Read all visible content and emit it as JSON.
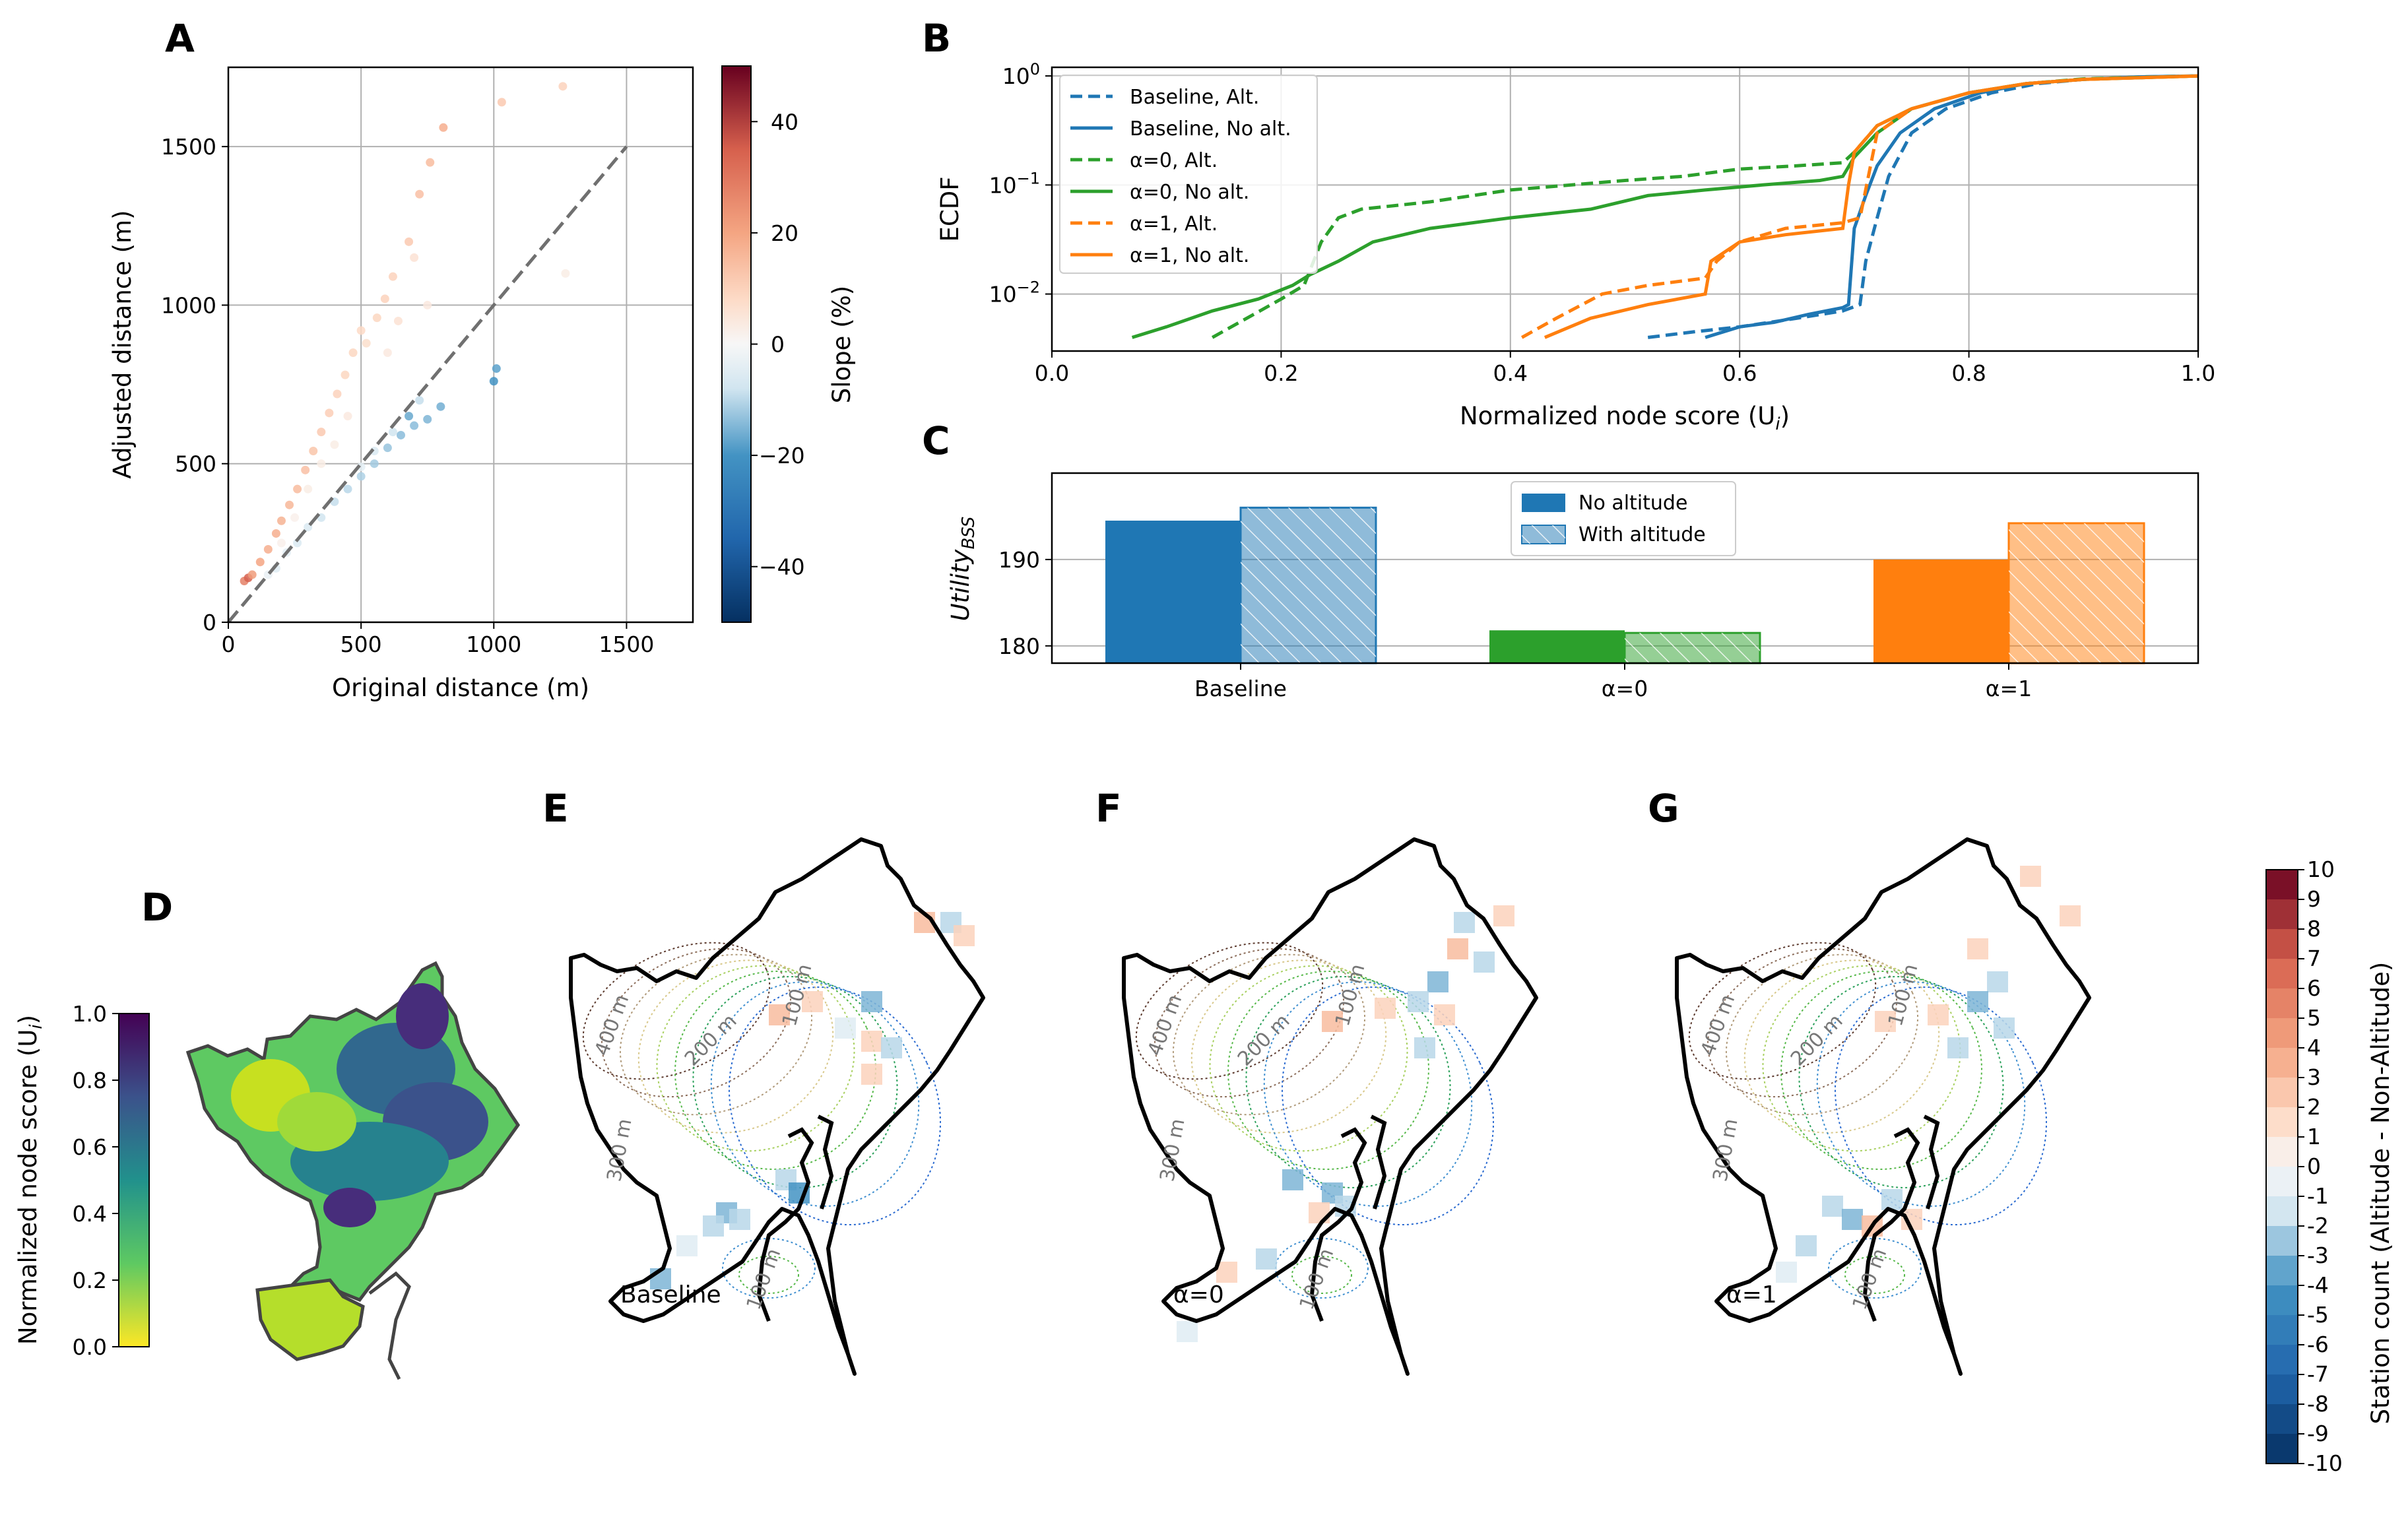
{
  "panels": {
    "A": "A",
    "B": "B",
    "C": "C",
    "D": "D",
    "E": "E",
    "F": "F",
    "G": "G"
  },
  "chart_data": [
    {
      "panel": "A",
      "type": "scatter",
      "xlabel": "Original distance (m)",
      "ylabel": "Adjusted distance (m)",
      "xlim": [
        0,
        1750
      ],
      "ylim": [
        0,
        1750
      ],
      "xticks": [
        0,
        500,
        1000,
        1500
      ],
      "yticks": [
        0,
        500,
        1000,
        1500
      ],
      "grid": true,
      "reference_line": {
        "x": [
          0,
          1500
        ],
        "y": [
          0,
          1500
        ],
        "style": "dashed",
        "color": "#707070"
      },
      "colorbar": {
        "label": "Slope (%)",
        "range": [
          -50,
          50
        ],
        "ticks": [
          40,
          20,
          0,
          -20,
          -40
        ],
        "colormap": "RdBu_r"
      },
      "points": [
        [
          60,
          130,
          28
        ],
        [
          75,
          140,
          35
        ],
        [
          90,
          150,
          22
        ],
        [
          120,
          190,
          20
        ],
        [
          150,
          230,
          18
        ],
        [
          180,
          280,
          18
        ],
        [
          200,
          320,
          17
        ],
        [
          230,
          370,
          16
        ],
        [
          260,
          420,
          15
        ],
        [
          290,
          480,
          14
        ],
        [
          320,
          540,
          13
        ],
        [
          350,
          600,
          12
        ],
        [
          380,
          660,
          11
        ],
        [
          410,
          720,
          10
        ],
        [
          440,
          780,
          9
        ],
        [
          470,
          850,
          9
        ],
        [
          500,
          920,
          8
        ],
        [
          520,
          880,
          7
        ],
        [
          560,
          960,
          9
        ],
        [
          590,
          1020,
          10
        ],
        [
          620,
          1090,
          10
        ],
        [
          680,
          1200,
          12
        ],
        [
          720,
          1350,
          14
        ],
        [
          760,
          1450,
          15
        ],
        [
          810,
          1560,
          18
        ],
        [
          1030,
          1640,
          12
        ],
        [
          1260,
          1690,
          10
        ],
        [
          1270,
          1100,
          3
        ],
        [
          700,
          1150,
          6
        ],
        [
          750,
          1000,
          4
        ],
        [
          640,
          950,
          6
        ],
        [
          600,
          850,
          4
        ],
        [
          450,
          650,
          4
        ],
        [
          400,
          560,
          3
        ],
        [
          350,
          500,
          3
        ],
        [
          300,
          420,
          3
        ],
        [
          250,
          330,
          2
        ],
        [
          200,
          250,
          2
        ],
        [
          150,
          150,
          -3
        ],
        [
          180,
          170,
          -5
        ],
        [
          220,
          220,
          -4
        ],
        [
          260,
          250,
          -6
        ],
        [
          300,
          300,
          -6
        ],
        [
          350,
          330,
          -8
        ],
        [
          400,
          380,
          -9
        ],
        [
          450,
          420,
          -10
        ],
        [
          500,
          460,
          -11
        ],
        [
          550,
          500,
          -12
        ],
        [
          600,
          550,
          -13
        ],
        [
          650,
          590,
          -14
        ],
        [
          700,
          620,
          -14
        ],
        [
          750,
          640,
          -15
        ],
        [
          800,
          680,
          -16
        ],
        [
          680,
          650,
          -17
        ],
        [
          1000,
          760,
          -20
        ],
        [
          1010,
          800,
          -18
        ],
        [
          550,
          540,
          -6
        ],
        [
          620,
          600,
          -8
        ],
        [
          720,
          700,
          -9
        ],
        [
          500,
          490,
          -4
        ]
      ]
    },
    {
      "panel": "B",
      "type": "line",
      "xlabel": "Normalized node score (U",
      "xlabel_sub": "i",
      "xlabel_close": ")",
      "ylabel": "ECDF",
      "xlim": [
        0,
        1.0
      ],
      "yscale": "log",
      "ylim": [
        0.003,
        1.2
      ],
      "xticks": [
        "0.0",
        "0.2",
        "0.4",
        "0.6",
        "0.8",
        "1.0"
      ],
      "yticks": [
        {
          "v": 1,
          "base": "10",
          "exp": "0"
        },
        {
          "v": 0.1,
          "base": "10",
          "exp": "−1"
        },
        {
          "v": 0.01,
          "base": "10",
          "exp": "−2"
        }
      ],
      "grid": true,
      "legend_position": "upper-left",
      "series": [
        {
          "name": "Baseline, Alt.",
          "color": "#1f77b4",
          "dash": true,
          "x": [
            0.52,
            0.56,
            0.6,
            0.65,
            0.69,
            0.705,
            0.71,
            0.72,
            0.73,
            0.75,
            0.78,
            0.82,
            0.86,
            0.9,
            0.95,
            1.0
          ],
          "y": [
            0.004,
            0.0045,
            0.005,
            0.006,
            0.007,
            0.008,
            0.02,
            0.05,
            0.12,
            0.3,
            0.5,
            0.7,
            0.85,
            0.93,
            0.98,
            1.0
          ]
        },
        {
          "name": "Baseline, No alt.",
          "color": "#1f77b4",
          "dash": false,
          "x": [
            0.57,
            0.6,
            0.63,
            0.66,
            0.69,
            0.695,
            0.7,
            0.71,
            0.72,
            0.74,
            0.77,
            0.81,
            0.85,
            0.9,
            0.95,
            1.0
          ],
          "y": [
            0.004,
            0.005,
            0.0055,
            0.0065,
            0.0075,
            0.008,
            0.04,
            0.08,
            0.15,
            0.3,
            0.5,
            0.7,
            0.85,
            0.93,
            0.98,
            1.0
          ]
        },
        {
          "name": "α=0, Alt.",
          "color": "#2ca02c",
          "dash": true,
          "x": [
            0.14,
            0.17,
            0.2,
            0.22,
            0.235,
            0.25,
            0.27,
            0.33,
            0.4,
            0.5,
            0.55,
            0.6,
            0.65,
            0.69,
            0.7,
            0.72,
            0.75,
            0.8,
            0.85,
            0.9,
            1.0
          ],
          "y": [
            0.004,
            0.006,
            0.009,
            0.012,
            0.03,
            0.05,
            0.06,
            0.07,
            0.09,
            0.11,
            0.12,
            0.14,
            0.15,
            0.16,
            0.2,
            0.35,
            0.5,
            0.7,
            0.85,
            0.94,
            1.0
          ]
        },
        {
          "name": "α=0, No alt.",
          "color": "#2ca02c",
          "dash": false,
          "x": [
            0.07,
            0.1,
            0.14,
            0.18,
            0.21,
            0.225,
            0.25,
            0.28,
            0.33,
            0.4,
            0.47,
            0.52,
            0.57,
            0.62,
            0.67,
            0.69,
            0.7,
            0.72,
            0.75,
            0.8,
            0.85,
            0.9,
            1.0
          ],
          "y": [
            0.004,
            0.005,
            0.007,
            0.009,
            0.012,
            0.015,
            0.02,
            0.03,
            0.04,
            0.05,
            0.06,
            0.08,
            0.09,
            0.1,
            0.11,
            0.12,
            0.18,
            0.3,
            0.5,
            0.7,
            0.85,
            0.93,
            1.0
          ]
        },
        {
          "name": "α=1, Alt.",
          "color": "#ff7f0e",
          "dash": true,
          "x": [
            0.41,
            0.44,
            0.48,
            0.52,
            0.57,
            0.58,
            0.6,
            0.64,
            0.69,
            0.705,
            0.72,
            0.75,
            0.8,
            0.85,
            0.9,
            1.0
          ],
          "y": [
            0.004,
            0.006,
            0.01,
            0.012,
            0.014,
            0.02,
            0.03,
            0.04,
            0.045,
            0.05,
            0.3,
            0.5,
            0.7,
            0.85,
            0.93,
            1.0
          ]
        },
        {
          "name": "α=1, No alt.",
          "color": "#ff7f0e",
          "dash": false,
          "x": [
            0.43,
            0.47,
            0.52,
            0.57,
            0.575,
            0.6,
            0.64,
            0.69,
            0.695,
            0.7,
            0.72,
            0.75,
            0.8,
            0.85,
            0.9,
            1.0
          ],
          "y": [
            0.004,
            0.006,
            0.008,
            0.01,
            0.02,
            0.03,
            0.035,
            0.04,
            0.1,
            0.2,
            0.35,
            0.5,
            0.7,
            0.85,
            0.93,
            1.0
          ]
        }
      ]
    },
    {
      "panel": "C",
      "type": "bar",
      "ylabel": "Utility",
      "ylabel_sub": "BSS",
      "categories": [
        "Baseline",
        "α=0",
        "α=1"
      ],
      "ylim": [
        178,
        200
      ],
      "yticks": [
        180,
        190
      ],
      "grid": true,
      "legend_position": "upper-center",
      "series": [
        {
          "name": "No altitude",
          "values": [
            194.5,
            181.8,
            190.0
          ],
          "hatched": false
        },
        {
          "name": "With altitude",
          "values": [
            196.0,
            181.5,
            194.2
          ],
          "hatched": true
        }
      ],
      "colors": [
        "#1f77b4",
        "#2ca02c",
        "#ff7f0e"
      ]
    },
    {
      "panel": "D",
      "type": "heatmap",
      "colorbar": {
        "label": "Normalized node score (U",
        "label_sub": "i",
        "label_close": ")",
        "range": [
          0.0,
          1.0
        ],
        "ticks": [
          "1.0",
          "0.8",
          "0.6",
          "0.4",
          "0.2",
          "0.0"
        ],
        "colormap": "viridis_r"
      }
    },
    {
      "panel": "E-G",
      "type": "heatmap",
      "maps": [
        {
          "panel": "E",
          "label": "Baseline"
        },
        {
          "panel": "F",
          "label": "α=0"
        },
        {
          "panel": "G",
          "label": "α=1"
        }
      ],
      "contour_labels": [
        "400 m",
        "300 m",
        "200 m",
        "100 m",
        "100 m"
      ],
      "colorbar": {
        "label": "Station count (Altitude - Non-Altitude)",
        "range": [
          -10,
          10
        ],
        "ticks": [
          "10",
          "9",
          "8",
          "7",
          "6",
          "5",
          "4",
          "3",
          "2",
          "1",
          "0",
          "-1",
          "-2",
          "-3",
          "-4",
          "-5",
          "-6",
          "-7",
          "-8",
          "-9",
          "-10"
        ],
        "colormap": "RdBu_r"
      }
    }
  ]
}
